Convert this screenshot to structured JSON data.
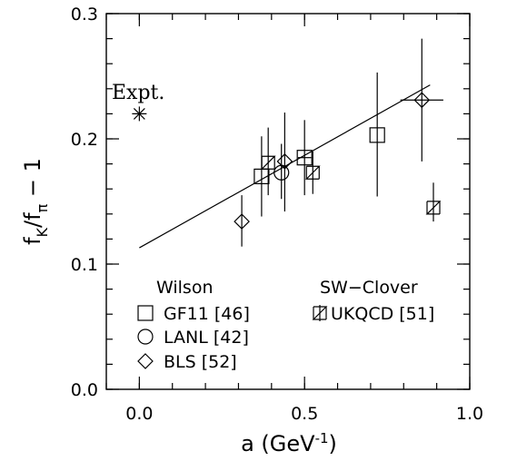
{
  "chart_data": {
    "type": "scatter",
    "xlabel": "a (GeV",
    "xlabel_sup": "-1",
    "xlabel_close": ")",
    "ylabel_main": "f",
    "ylabel_sub1": "K",
    "ylabel_mid": "/f",
    "ylabel_sub2": "π",
    "ylabel_end": " − 1",
    "xlim": [
      -0.1,
      1.0
    ],
    "ylim": [
      0.0,
      0.3
    ],
    "x_ticks": [
      {
        "v": 0.0,
        "label": "0.0"
      },
      {
        "v": 0.5,
        "label": "0.5"
      },
      {
        "v": 1.0,
        "label": "1.0"
      }
    ],
    "y_ticks": [
      {
        "v": 0.0,
        "label": "0.0"
      },
      {
        "v": 0.1,
        "label": "0.1"
      },
      {
        "v": 0.2,
        "label": "0.2"
      },
      {
        "v": 0.3,
        "label": "0.3"
      }
    ],
    "fit_line": {
      "x": [
        0.0,
        0.88
      ],
      "y": [
        0.113,
        0.243
      ]
    },
    "expt": {
      "label": "Expt.",
      "x": 0.0,
      "y": 0.22
    },
    "legend_groups": [
      "Wilson",
      "SW−Clover"
    ],
    "series": [
      {
        "name": "GF11 [46]",
        "marker": "square",
        "group": "Wilson",
        "points": [
          {
            "x": 0.37,
            "y": 0.17,
            "ylo": 0.138,
            "yhi": 0.202
          },
          {
            "x": 0.5,
            "y": 0.185,
            "ylo": 0.155,
            "yhi": 0.215,
            "xlo": 0.48,
            "xhi": 0.52
          },
          {
            "x": 0.72,
            "y": 0.203,
            "ylo": 0.154,
            "yhi": 0.253
          }
        ]
      },
      {
        "name": "LANL [42]",
        "marker": "circle",
        "group": "Wilson",
        "points": [
          {
            "x": 0.43,
            "y": 0.173,
            "ylo": 0.152,
            "yhi": 0.196
          }
        ]
      },
      {
        "name": "BLS [52]",
        "marker": "diamond",
        "group": "Wilson",
        "points": [
          {
            "x": 0.31,
            "y": 0.134,
            "ylo": 0.114,
            "yhi": 0.155
          },
          {
            "x": 0.44,
            "y": 0.182,
            "ylo": 0.142,
            "yhi": 0.221
          },
          {
            "x": 0.855,
            "y": 0.231,
            "ylo": 0.182,
            "yhi": 0.28,
            "xlo": 0.79,
            "xhi": 0.92
          }
        ]
      },
      {
        "name": "UKQCD [51]",
        "marker": "ukqcd",
        "group": "SW−Clover",
        "points": [
          {
            "x": 0.39,
            "y": 0.181,
            "ylo": 0.155,
            "yhi": 0.209
          },
          {
            "x": 0.525,
            "y": 0.173,
            "ylo": 0.156,
            "yhi": 0.19
          },
          {
            "x": 0.89,
            "y": 0.145,
            "ylo": 0.134,
            "yhi": 0.165
          }
        ]
      }
    ]
  }
}
